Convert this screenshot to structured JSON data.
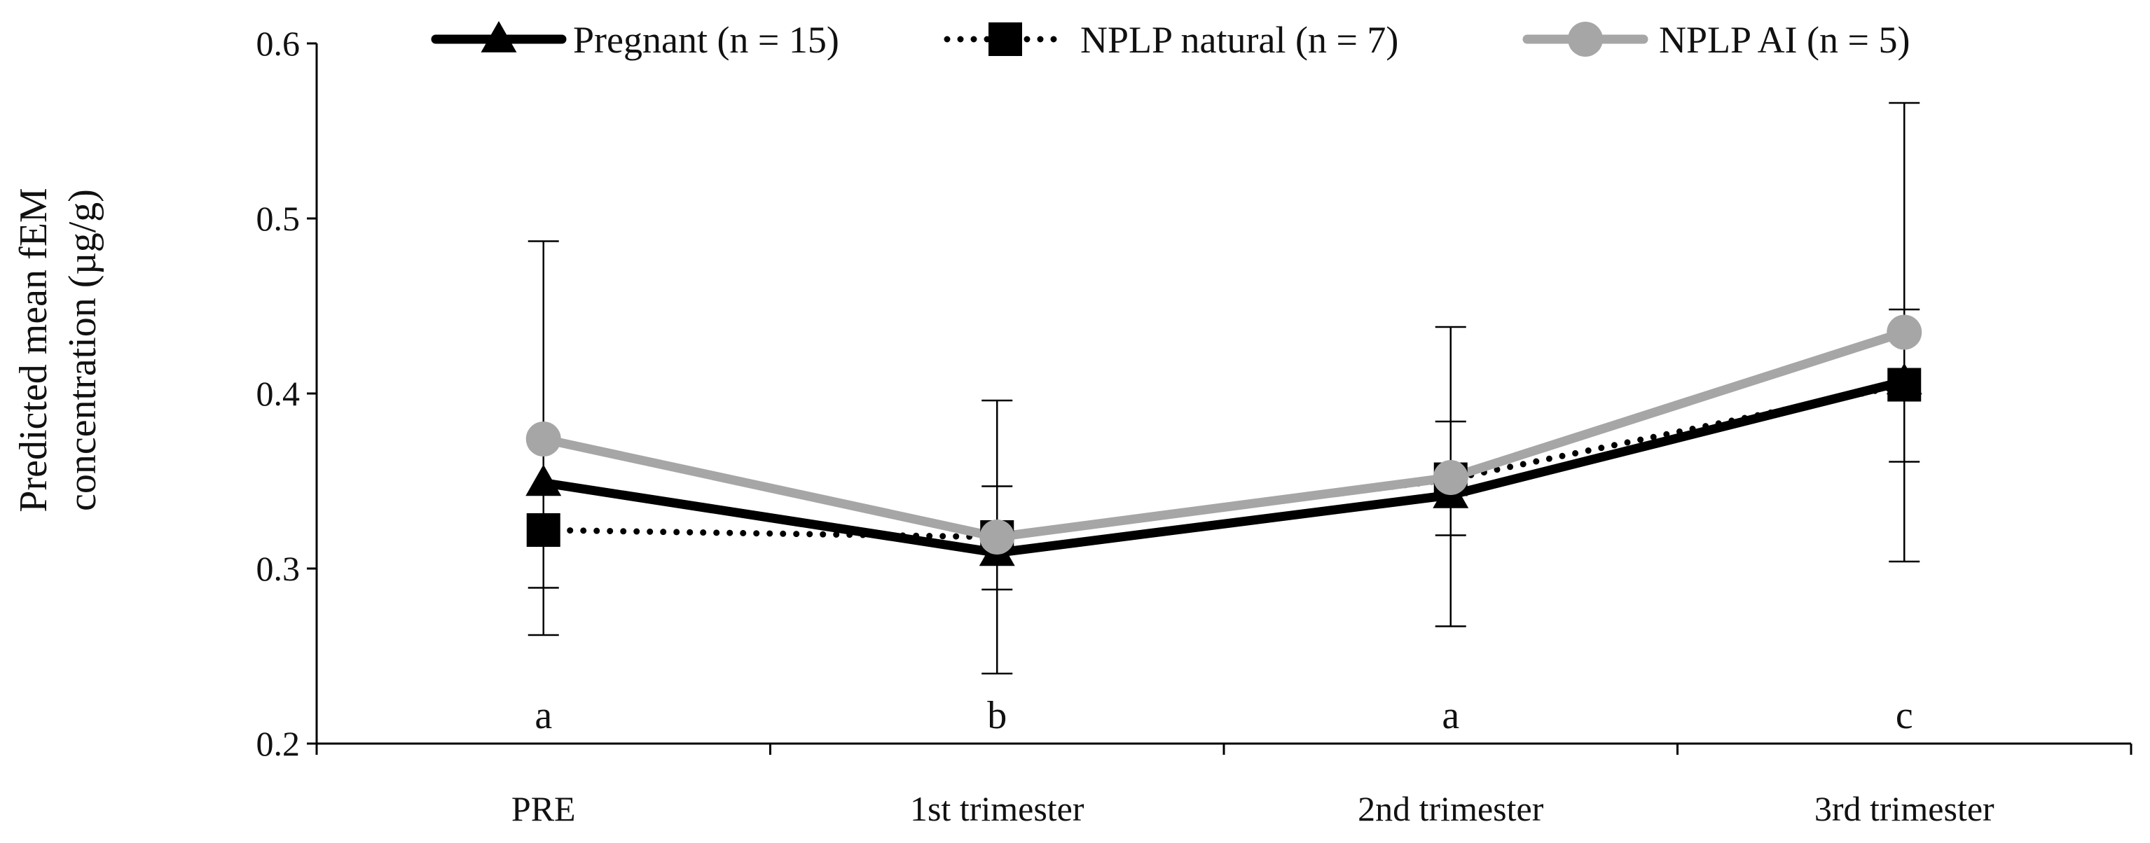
{
  "chart_data": {
    "type": "line",
    "title": "",
    "xlabel": "",
    "ylabel": "Predicted mean fEM concentration (µg/g)",
    "ylabel_lines": [
      "Predicted mean fEM",
      "concentration (µg/g)"
    ],
    "ylim": [
      0.2,
      0.6
    ],
    "yticks": [
      0.2,
      0.3,
      0.4,
      0.5,
      0.6
    ],
    "ytick_labels": [
      "0.2",
      "0.3",
      "0.4",
      "0.5",
      "0.6"
    ],
    "categories": [
      "PRE",
      "1st trimester",
      "2nd trimester",
      "3rd trimester"
    ],
    "significance_letters": [
      "a",
      "b",
      "a",
      "c"
    ],
    "legend_position": "top",
    "series": [
      {
        "name": "Pregnant (n = 15)",
        "marker": "triangle",
        "line": "solid",
        "color": "#000000",
        "values": [
          0.349,
          0.309,
          0.342,
          0.407
        ],
        "error_upper": [
          0.487,
          0.347,
          0.384,
          0.448
        ],
        "error_lower": [
          0.289,
          0.288,
          0.319,
          0.361
        ]
      },
      {
        "name": "NPLP natural (n = 7)",
        "marker": "square",
        "line": "dotted",
        "color": "#000000",
        "values": [
          0.322,
          0.318,
          0.351,
          0.405
        ],
        "error_upper": [
          0.322,
          0.318,
          0.351,
          0.405
        ],
        "error_lower": [
          0.322,
          0.318,
          0.351,
          0.405
        ]
      },
      {
        "name": "NPLP AI (n = 5)",
        "marker": "circle",
        "line": "solid",
        "color": "#a6a6a6",
        "values": [
          0.374,
          0.318,
          0.352,
          0.435
        ],
        "error_upper": [
          0.374,
          0.396,
          0.438,
          0.566
        ],
        "error_lower": [
          0.262,
          0.24,
          0.267,
          0.304
        ]
      }
    ]
  }
}
